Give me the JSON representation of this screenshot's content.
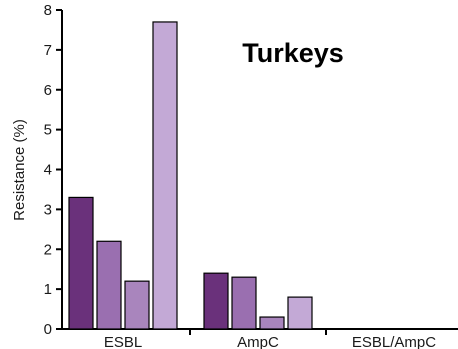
{
  "chart_data": {
    "type": "bar",
    "title": "Turkeys",
    "xlabel": "",
    "ylabel": "Resistance (%)",
    "ylim": [
      0,
      8
    ],
    "yticks": [
      "0",
      "1",
      "2",
      "3",
      "4",
      "5",
      "6",
      "7",
      "8"
    ],
    "categories": [
      "ESBL",
      "AmpC",
      "ESBL/AmpC"
    ],
    "series": [
      {
        "values": [
          3.3,
          1.4,
          0
        ],
        "color": "#6a317b"
      },
      {
        "values": [
          2.2,
          1.3,
          0
        ],
        "color": "#9a6fb0"
      },
      {
        "values": [
          1.2,
          0.3,
          0
        ],
        "color": "#a985bd"
      },
      {
        "values": [
          7.7,
          0.8,
          0
        ],
        "color": "#c3a9d6"
      }
    ],
    "grid": false,
    "legend": "none"
  }
}
